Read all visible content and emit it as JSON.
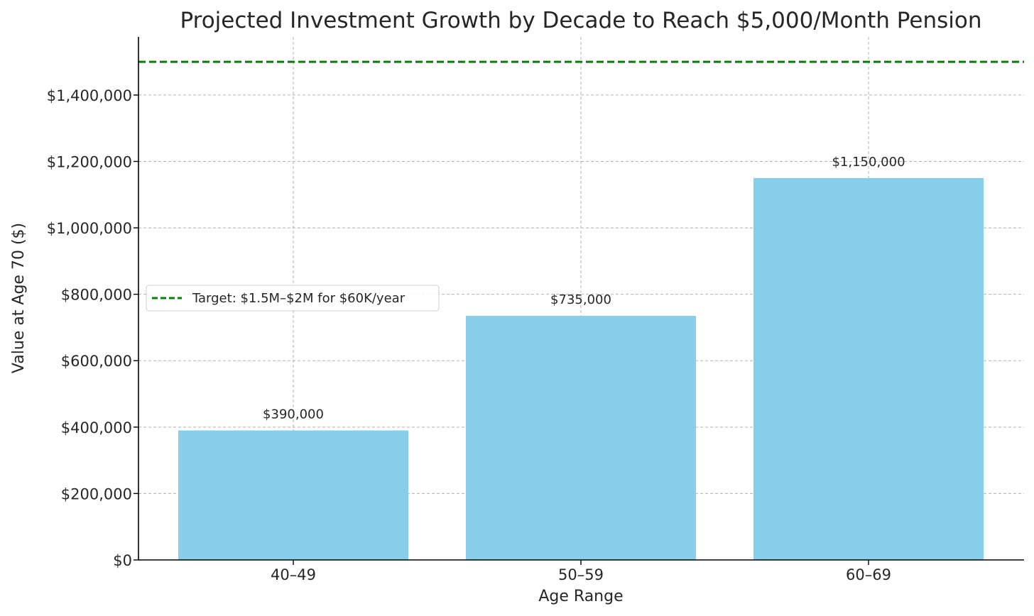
{
  "chart_data": {
    "type": "bar",
    "title": "Projected Investment Growth by Decade to Reach $5,000/Month Pension",
    "xlabel": "Age Range",
    "ylabel": "Value at Age 70 ($)",
    "categories": [
      "40–49",
      "50–59",
      "60–69"
    ],
    "values": [
      390000,
      735000,
      1150000
    ],
    "data_labels": [
      "$390,000",
      "$735,000",
      "$1,150,000"
    ],
    "ylim": [
      0,
      1575000
    ],
    "yticks": [
      0,
      200000,
      400000,
      600000,
      800000,
      1000000,
      1200000,
      1400000
    ],
    "ytick_labels": [
      "$0",
      "$200,000",
      "$400,000",
      "$600,000",
      "$800,000",
      "$1,000,000",
      "$1,200,000",
      "$1,400,000"
    ],
    "grid": true,
    "bar_color": "#87CEEB",
    "reference_line": {
      "value": 1500000,
      "label": "Target: $1.5M–$2M for $60K/year",
      "color": "#008000",
      "style": "dashed"
    },
    "legend": {
      "placement": "center-left"
    }
  }
}
